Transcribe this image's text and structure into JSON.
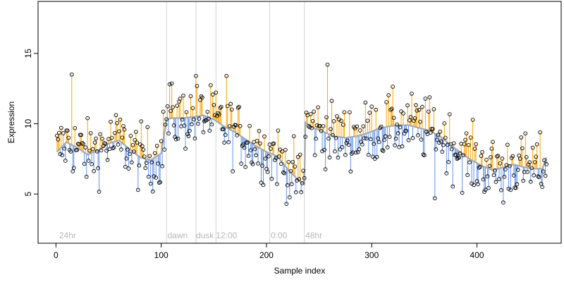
{
  "chart_data": {
    "type": "scatter",
    "title": "",
    "xlabel": "Sample index",
    "ylabel": "Expression",
    "xlim": [
      -17,
      480
    ],
    "ylim": [
      1.5,
      18.7
    ],
    "xticks": [
      0,
      100,
      200,
      300,
      400
    ],
    "yticks": [
      5,
      10,
      15
    ],
    "grid": false,
    "legend": "none",
    "colors": {
      "above": "#ffa500",
      "below": "#6495ed",
      "trend": "#a9a9a9",
      "point_edge": "#000000",
      "guide": "#d3d3d3",
      "annotation": "#b8b8b8"
    },
    "annotations": [
      {
        "x": 3,
        "label": "24hr"
      },
      {
        "x": 106,
        "label": "dawn"
      },
      {
        "x": 133,
        "label": "dusk"
      },
      {
        "x": 152,
        "label": "12:00"
      },
      {
        "x": 204,
        "label": "0:00"
      },
      {
        "x": 237,
        "label": "48hr"
      }
    ],
    "guide_lines": [
      105,
      133,
      152,
      203,
      236
    ],
    "trend": {
      "x": [
        1,
        10,
        20,
        30,
        40,
        50,
        60,
        70,
        80,
        90,
        100,
        105,
        110,
        120,
        133,
        140,
        150,
        160,
        170,
        180,
        190,
        200,
        210,
        220,
        230,
        236,
        237,
        245,
        255,
        265,
        275,
        285,
        295,
        305,
        315,
        325,
        335,
        345,
        355,
        365,
        375,
        385,
        395,
        405,
        415,
        425,
        435,
        445,
        455,
        462,
        466
      ],
      "y": [
        8.0,
        8.7,
        8.3,
        7.8,
        8.1,
        8.6,
        8.8,
        8.2,
        7.6,
        7.4,
        7.9,
        10.3,
        10.4,
        10.4,
        10.5,
        10.6,
        10.3,
        9.8,
        9.4,
        8.9,
        8.4,
        8.0,
        7.7,
        6.8,
        6.0,
        5.7,
        10.1,
        9.7,
        9.4,
        9.1,
        9.0,
        9.1,
        9.3,
        9.6,
        9.8,
        9.9,
        9.9,
        9.7,
        9.5,
        9.1,
        8.5,
        7.9,
        7.4,
        7.0,
        6.7,
        6.9,
        7.1,
        6.9,
        6.8,
        6.8,
        7.6
      ]
    },
    "note": "Points are read approximately from the plot; each point is joined to the trend line by an orange segment (above) or a blue segment (below)."
  }
}
